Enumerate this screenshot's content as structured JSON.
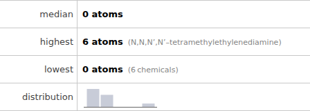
{
  "chart_data": [
    {
      "type": "table",
      "rows": [
        {
          "label": "median",
          "value": "0 atoms"
        },
        {
          "label": "highest",
          "value": "6 atoms",
          "note": "(N,N,N’,N’–tetramethylethylenediamine)"
        },
        {
          "label": "lowest",
          "value": "0 atoms",
          "note": "(6 chemicals)"
        },
        {
          "label": "distribution"
        }
      ]
    },
    {
      "type": "bar",
      "categories": [
        null,
        null,
        null,
        null,
        null
      ],
      "values": [
        6,
        4,
        0,
        0,
        1
      ],
      "color": "#c8ccd8",
      "ylim": [
        0,
        6.6
      ],
      "tick_labels": false
    }
  ]
}
